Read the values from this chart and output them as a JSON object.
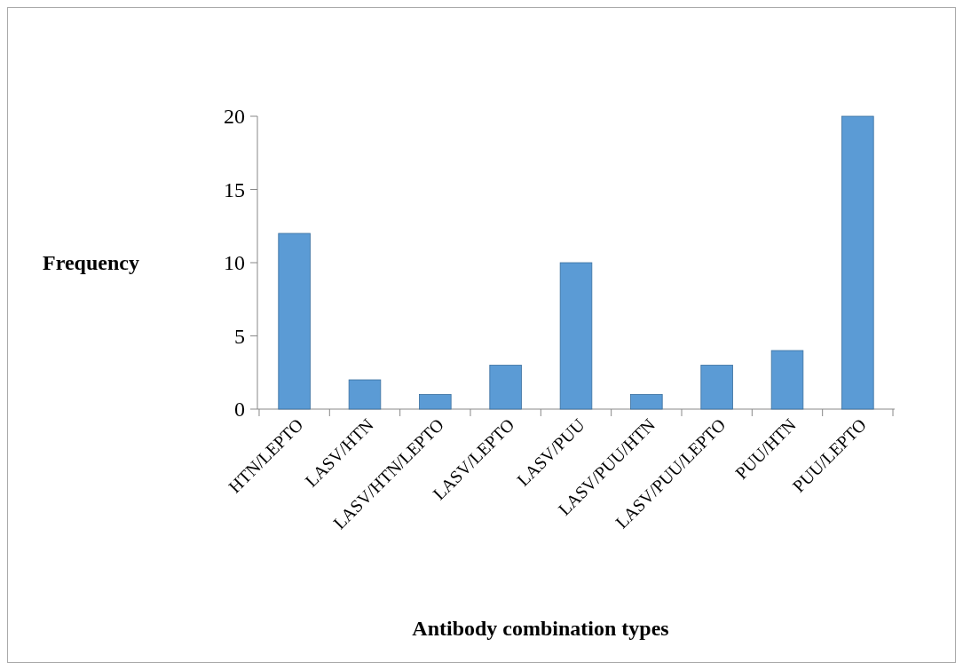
{
  "chart_data": {
    "type": "bar",
    "xlabel": "Antibody combination types",
    "ylabel": "Frequency",
    "categories": [
      "HTN/LEPTO",
      "LASV/HTN",
      "LASV/HTN/LEPTO",
      "LASV/LEPTO",
      "LASV/PUU",
      "LASV/PUU/HTN",
      "LASV/PUU/LEPTO",
      "PUU/HTN",
      "PUU/LEPTO"
    ],
    "values": [
      12,
      2,
      1,
      3,
      10,
      1,
      3,
      4,
      20
    ],
    "color": "#5b9bd5",
    "ylim": [
      0,
      20
    ],
    "yticks": [
      0,
      5,
      10,
      15,
      20
    ],
    "grid": false
  }
}
